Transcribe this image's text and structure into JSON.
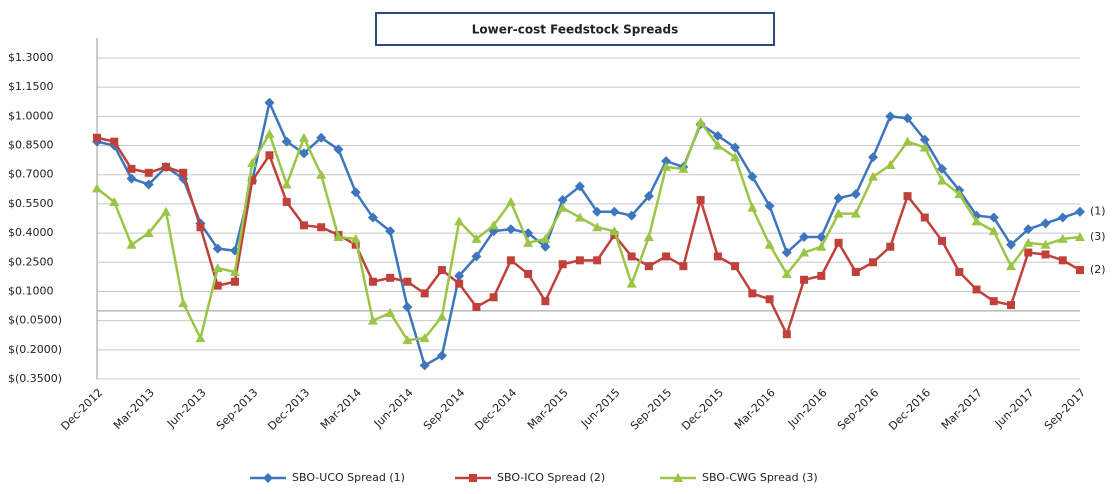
{
  "chart_data": {
    "type": "line",
    "title": "Lower-cost Feedstock Spreads",
    "categories": [
      "Dec-2012",
      null,
      null,
      "Mar-2013",
      null,
      null,
      "Jun-2013",
      null,
      null,
      "Sep-2013",
      null,
      null,
      "Dec-2013",
      null,
      null,
      "Mar-2014",
      null,
      null,
      "Jun-2014",
      null,
      null,
      "Sep-2014",
      null,
      null,
      "Dec-2014",
      null,
      null,
      "Mar-2015",
      null,
      null,
      "Jun-2015",
      null,
      null,
      "Sep-2015",
      null,
      null,
      "Dec-2015",
      null,
      null,
      "Mar-2016",
      null,
      null,
      "Jun-2016",
      null,
      null,
      "Sep-2016",
      null,
      null,
      "Dec-2016",
      null,
      null,
      "Mar-2017",
      null,
      null,
      "Jun-2017",
      null,
      null,
      "Sep-2017"
    ],
    "series": [
      {
        "name": "SBO-UCO Spread (1)",
        "color": "#3d76bd",
        "marker": "diamond",
        "end_label": "(1)",
        "values": [
          0.87,
          0.85,
          0.68,
          0.65,
          0.74,
          0.68,
          0.45,
          0.32,
          0.31,
          0.67,
          1.07,
          0.87,
          0.81,
          0.89,
          0.83,
          0.61,
          0.48,
          0.41,
          0.02,
          -0.28,
          -0.23,
          0.18,
          0.28,
          0.41,
          0.42,
          0.4,
          0.33,
          0.57,
          0.64,
          0.51,
          0.51,
          0.49,
          0.59,
          0.77,
          0.74,
          0.96,
          0.9,
          0.84,
          0.69,
          0.54,
          0.3,
          0.38,
          0.38,
          0.58,
          0.6,
          0.79,
          1.0,
          0.99,
          0.88,
          0.73,
          0.62,
          0.49,
          0.48,
          0.34,
          0.42,
          0.45,
          0.48,
          0.51
        ]
      },
      {
        "name": "SBO-ICO Spread (2)",
        "color": "#c0413c",
        "marker": "square",
        "end_label": "(2)",
        "values": [
          0.89,
          0.87,
          0.73,
          0.71,
          0.74,
          0.71,
          0.43,
          0.13,
          0.15,
          0.67,
          0.8,
          0.56,
          0.44,
          0.43,
          0.39,
          0.34,
          0.15,
          0.17,
          0.15,
          0.09,
          0.21,
          0.14,
          0.02,
          0.07,
          0.26,
          0.19,
          0.05,
          0.24,
          0.26,
          0.26,
          0.39,
          0.28,
          0.23,
          0.28,
          0.23,
          0.57,
          0.28,
          0.23,
          0.09,
          0.06,
          -0.12,
          0.16,
          0.18,
          0.35,
          0.2,
          0.25,
          0.33,
          0.59,
          0.48,
          0.36,
          0.2,
          0.11,
          0.05,
          0.03,
          0.3,
          0.29,
          0.26,
          0.21
        ]
      },
      {
        "name": "SBO-CWG Spread (3)",
        "color": "#9bc546",
        "marker": "triangle",
        "end_label": "(3)",
        "values": [
          0.63,
          0.56,
          0.34,
          0.4,
          0.51,
          0.04,
          -0.14,
          0.22,
          0.2,
          0.76,
          0.91,
          0.65,
          0.89,
          0.7,
          0.38,
          0.37,
          -0.05,
          -0.01,
          -0.15,
          -0.14,
          -0.03,
          0.46,
          0.37,
          0.44,
          0.56,
          0.35,
          0.37,
          0.53,
          0.48,
          0.43,
          0.41,
          0.14,
          0.38,
          0.74,
          0.73,
          0.97,
          0.85,
          0.79,
          0.53,
          0.34,
          0.19,
          0.3,
          0.33,
          0.5,
          0.5,
          0.69,
          0.75,
          0.87,
          0.84,
          0.67,
          0.6,
          0.46,
          0.41,
          0.23,
          0.35,
          0.34,
          0.37,
          0.38
        ]
      }
    ],
    "ylim": [
      -0.35,
      1.3
    ],
    "yticks": [
      {
        "value": 1.3,
        "label": "$1.3000"
      },
      {
        "value": 1.15,
        "label": "$1.1500"
      },
      {
        "value": 1.0,
        "label": "$1.0000"
      },
      {
        "value": 0.85,
        "label": "$0.8500"
      },
      {
        "value": 0.7,
        "label": "$0.7000"
      },
      {
        "value": 0.55,
        "label": "$0.5500"
      },
      {
        "value": 0.4,
        "label": "$0.4000"
      },
      {
        "value": 0.25,
        "label": "$0.2500"
      },
      {
        "value": 0.1,
        "label": "$0.1000"
      },
      {
        "value": -0.05,
        "label": "$(0.0500)"
      },
      {
        "value": -0.2,
        "label": "$(0.2000)"
      },
      {
        "value": -0.35,
        "label": "$(0.3500)"
      }
    ],
    "grid": true,
    "legend": "bottom"
  }
}
